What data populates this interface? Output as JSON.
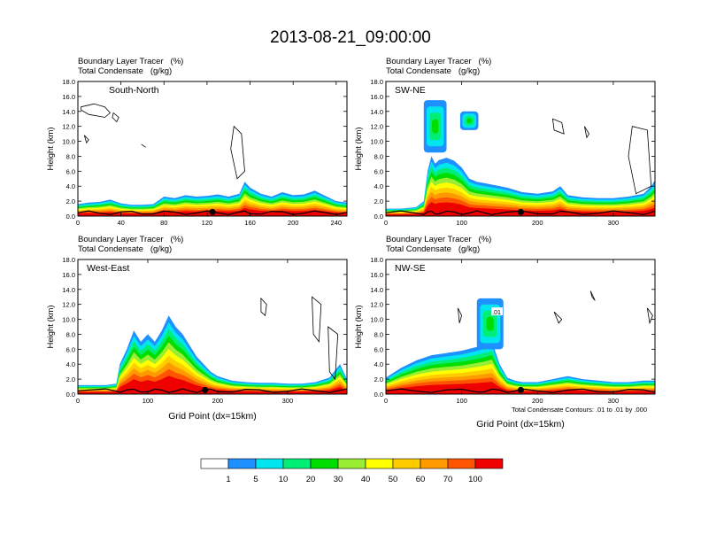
{
  "title": "2013-08-21_09:00:00",
  "panel_header": {
    "line1": "Boundary Layer Tracer   (%)",
    "line2": "Total Condensate   (g/kg)"
  },
  "footnote": "Total Condensate Contours: .01 to .01 by .000",
  "colorbar": {
    "labels": [
      "1",
      "5",
      "10",
      "20",
      "30",
      "40",
      "50",
      "60",
      "70",
      "100"
    ],
    "colors": [
      "#ffffff",
      "#1e90ff",
      "#00e5ee",
      "#00ee76",
      "#00dd00",
      "#99ee33",
      "#ffff00",
      "#ffcc00",
      "#ff9900",
      "#ff5500",
      "#ee0000"
    ]
  },
  "chart_data": [
    {
      "type": "heatmap",
      "panel": "South-North",
      "xlabel": "",
      "ylabel": "Height (km)",
      "xlim": [
        0,
        250
      ],
      "ylim": [
        0,
        18
      ],
      "xticks": [
        "0",
        "40",
        "80",
        "120",
        "160",
        "200",
        "240"
      ],
      "xtick_values": [
        0,
        40,
        80,
        120,
        160,
        200,
        240
      ],
      "yticks": [
        "0.0",
        "2.0",
        "4.0",
        "6.0",
        "8.0",
        "10.0",
        "12.0",
        "14.0",
        "16.0",
        "18.0"
      ],
      "marker_x": 125,
      "tracer_profile": {
        "x": [
          0,
          10,
          20,
          30,
          40,
          50,
          60,
          70,
          80,
          90,
          100,
          110,
          120,
          130,
          140,
          150,
          155,
          160,
          170,
          180,
          190,
          200,
          210,
          220,
          230,
          240,
          250
        ],
        "top_km": [
          1.6,
          1.8,
          1.9,
          2.2,
          1.7,
          1.5,
          1.5,
          1.6,
          2.6,
          2.4,
          2.8,
          2.6,
          2.7,
          2.9,
          2.6,
          3.0,
          4.6,
          3.8,
          3.0,
          2.6,
          3.2,
          2.8,
          2.9,
          3.4,
          2.7,
          2.0,
          1.8
        ]
      },
      "condensate_contours": [
        {
          "x": [
            3,
            15,
            25,
            30,
            25,
            10,
            3
          ],
          "y": [
            14.6,
            15.0,
            14.6,
            13.8,
            13.2,
            13.6,
            14.2
          ]
        },
        {
          "x": [
            33,
            38,
            36,
            32
          ],
          "y": [
            13.8,
            13.2,
            12.6,
            13.2
          ]
        },
        {
          "x": [
            6,
            10,
            8
          ],
          "y": [
            10.8,
            10.2,
            9.8
          ]
        },
        {
          "x": [
            145,
            152,
            155,
            148,
            142
          ],
          "y": [
            12.0,
            11.0,
            6.0,
            5.0,
            9.0
          ]
        },
        {
          "x": [
            59,
            63
          ],
          "y": [
            9.6,
            9.2
          ]
        }
      ]
    },
    {
      "type": "heatmap",
      "panel": "SW-NE",
      "xlabel": "",
      "ylabel": "Height (km)",
      "xlim": [
        0,
        355
      ],
      "ylim": [
        0,
        18
      ],
      "xticks": [
        "0",
        "100",
        "200",
        "300"
      ],
      "xtick_values": [
        0,
        100,
        200,
        300
      ],
      "yticks": [
        "0.0",
        "2.0",
        "4.0",
        "6.0",
        "8.0",
        "10.0",
        "12.0",
        "14.0",
        "16.0",
        "18.0"
      ],
      "marker_x": 178,
      "tracer_profile": {
        "x": [
          0,
          20,
          40,
          50,
          55,
          60,
          65,
          70,
          80,
          90,
          100,
          110,
          120,
          130,
          140,
          160,
          180,
          200,
          220,
          230,
          240,
          260,
          280,
          300,
          320,
          340,
          350,
          355
        ],
        "top_km": [
          1.0,
          1.0,
          1.2,
          2.0,
          6.0,
          8.0,
          7.0,
          7.5,
          7.8,
          7.4,
          6.5,
          5.0,
          4.6,
          4.4,
          4.2,
          3.8,
          3.2,
          3.0,
          3.3,
          4.0,
          2.8,
          2.5,
          2.4,
          2.4,
          2.6,
          3.0,
          4.0,
          4.8
        ]
      },
      "upper_cloud": {
        "x": [
          50,
          80
        ],
        "top_km": 15.5,
        "bottom_km": 8.5
      },
      "upper_cloud2": {
        "x": [
          98,
          122
        ],
        "top_km": 14.0,
        "bottom_km": 11.5
      },
      "condensate_contours": [
        {
          "x": [
            220,
            232,
            235,
            222
          ],
          "y": [
            13.0,
            12.5,
            11.0,
            11.5
          ]
        },
        {
          "x": [
            262,
            268,
            265
          ],
          "y": [
            12.0,
            11.0,
            10.5
          ]
        },
        {
          "x": [
            325,
            345,
            350,
            330,
            320
          ],
          "y": [
            12.0,
            11.5,
            4.0,
            3.0,
            8.0
          ]
        }
      ]
    },
    {
      "type": "heatmap",
      "panel": "West-East",
      "xlabel": "Grid Point (dx=15km)",
      "ylabel": "Height (km)",
      "xlim": [
        0,
        385
      ],
      "ylim": [
        0,
        18
      ],
      "xticks": [
        "0",
        "100",
        "200",
        "300"
      ],
      "xtick_values": [
        0,
        100,
        200,
        300
      ],
      "yticks": [
        "0.0",
        "2.0",
        "4.0",
        "6.0",
        "8.0",
        "10.0",
        "12.0",
        "14.0",
        "16.0",
        "18.0"
      ],
      "marker_x": 182,
      "tracer_profile": {
        "x": [
          0,
          40,
          55,
          60,
          70,
          80,
          90,
          100,
          110,
          120,
          130,
          140,
          150,
          160,
          170,
          180,
          190,
          200,
          220,
          240,
          260,
          280,
          300,
          320,
          340,
          360,
          375,
          385
        ],
        "top_km": [
          1.2,
          1.2,
          1.4,
          4.0,
          6.0,
          8.5,
          7.0,
          8.0,
          7.0,
          8.5,
          10.5,
          9.0,
          8.0,
          6.5,
          5.0,
          4.0,
          3.0,
          2.4,
          1.8,
          1.6,
          1.5,
          1.5,
          1.4,
          1.4,
          1.6,
          2.2,
          4.0,
          2.0
        ]
      },
      "condensate_contours": [
        {
          "x": [
            262,
            270,
            268,
            262
          ],
          "y": [
            12.8,
            12.0,
            10.5,
            11.0
          ]
        },
        {
          "x": [
            335,
            348,
            345,
            337
          ],
          "y": [
            13.0,
            12.0,
            7.0,
            8.0
          ]
        },
        {
          "x": [
            358,
            372,
            368,
            360
          ],
          "y": [
            9.0,
            8.0,
            2.0,
            3.0
          ]
        }
      ]
    },
    {
      "type": "heatmap",
      "panel": "NW-SE",
      "xlabel": "Grid Point (dx=15km)",
      "ylabel": "Height (km)",
      "xlim": [
        0,
        355
      ],
      "ylim": [
        0,
        18
      ],
      "xticks": [
        "0",
        "100",
        "200",
        "300"
      ],
      "xtick_values": [
        0,
        100,
        200,
        300
      ],
      "yticks": [
        "0.0",
        "2.0",
        "4.0",
        "6.0",
        "8.0",
        "10.0",
        "12.0",
        "14.0",
        "16.0",
        "18.0"
      ],
      "marker_x": 178,
      "contour_label": ".01",
      "tracer_profile": {
        "x": [
          0,
          20,
          40,
          60,
          80,
          100,
          120,
          130,
          140,
          150,
          160,
          170,
          180,
          200,
          220,
          240,
          260,
          280,
          300,
          320,
          340,
          355
        ],
        "top_km": [
          2.2,
          3.5,
          4.5,
          5.2,
          5.5,
          5.8,
          6.3,
          6.6,
          7.0,
          4.0,
          2.2,
          1.8,
          1.6,
          1.6,
          2.0,
          2.4,
          2.0,
          1.8,
          1.6,
          1.6,
          1.8,
          1.8
        ]
      },
      "upper_cloud": {
        "x": [
          120,
          155
        ],
        "top_km": 12.8,
        "bottom_km": 6.0
      },
      "condensate_contours": [
        {
          "x": [
            95,
            100,
            97
          ],
          "y": [
            11.5,
            10.5,
            9.5
          ]
        },
        {
          "x": [
            222,
            232,
            228
          ],
          "y": [
            11.0,
            10.0,
            9.5
          ]
        },
        {
          "x": [
            270,
            276,
            272
          ],
          "y": [
            13.8,
            12.5,
            13.0
          ]
        },
        {
          "x": [
            345,
            352,
            348
          ],
          "y": [
            11.5,
            10.5,
            9.5
          ]
        }
      ]
    }
  ]
}
